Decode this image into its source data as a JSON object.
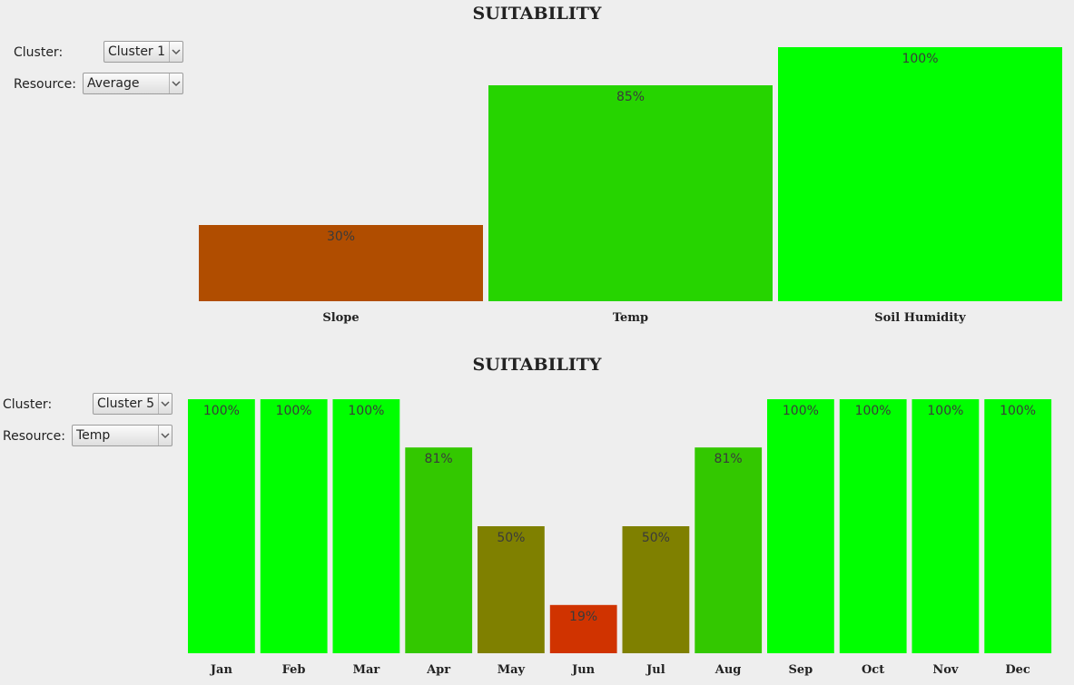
{
  "charts": [
    {
      "title": "SUITABILITY",
      "controls": {
        "cluster_label": "Cluster:",
        "cluster_value": "Cluster 1",
        "resource_label": "Resource:",
        "resource_value": "Average"
      },
      "chart_data": {
        "type": "bar",
        "title": "SUITABILITY",
        "xlabel": "",
        "ylabel": "",
        "ylim": [
          0,
          100
        ],
        "grid": false,
        "legend": "none",
        "categories": [
          "Slope",
          "Temp",
          "Soil Humidity"
        ],
        "values": [
          30,
          85,
          100
        ],
        "labels": [
          "30%",
          "85%",
          "100%"
        ],
        "colors": [
          "#b04d00",
          "#26d400",
          "#00ff00"
        ]
      }
    },
    {
      "title": "SUITABILITY",
      "controls": {
        "cluster_label": "Cluster:",
        "cluster_value": "Cluster 5",
        "resource_label": "Resource:",
        "resource_value": "Temp"
      },
      "chart_data": {
        "type": "bar",
        "title": "SUITABILITY",
        "xlabel": "",
        "ylabel": "",
        "ylim": [
          0,
          100
        ],
        "grid": false,
        "legend": "none",
        "categories": [
          "Jan",
          "Feb",
          "Mar",
          "Apr",
          "May",
          "Jun",
          "Jul",
          "Aug",
          "Sep",
          "Oct",
          "Nov",
          "Dec"
        ],
        "values": [
          100,
          100,
          100,
          81,
          50,
          19,
          50,
          81,
          100,
          100,
          100,
          100
        ],
        "labels": [
          "100%",
          "100%",
          "100%",
          "81%",
          "50%",
          "19%",
          "50%",
          "81%",
          "100%",
          "100%",
          "100%",
          "100%"
        ],
        "colors": [
          "#00ff00",
          "#00ff00",
          "#00ff00",
          "#33c800",
          "#7f8000",
          "#d03300",
          "#7f8000",
          "#33c800",
          "#00ff00",
          "#00ff00",
          "#00ff00",
          "#00ff00"
        ]
      }
    }
  ]
}
